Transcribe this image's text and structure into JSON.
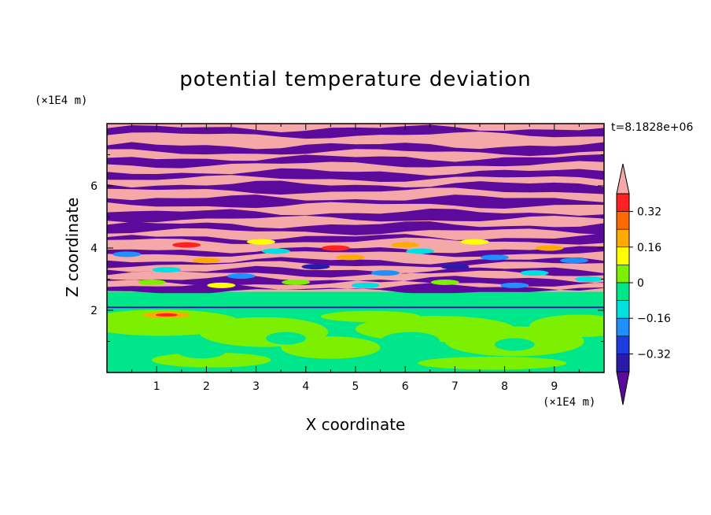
{
  "chart_data": {
    "type": "heatmap",
    "title": "potential temperature deviation",
    "xlabel": "X coordinate",
    "ylabel": "Z coordinate",
    "x_unit": "(×1E4 m)",
    "y_unit": "(×1E4 m)",
    "time_label": "t=8.1828e+06",
    "xlim": [
      0,
      10
    ],
    "ylim": [
      0,
      8
    ],
    "x_ticks": [
      1,
      2,
      3,
      4,
      5,
      6,
      7,
      8,
      9
    ],
    "y_ticks": [
      2,
      4,
      6
    ],
    "colorbar": {
      "labels": [
        "0.32",
        "0.16",
        "0",
        "-0.16",
        "-0.32"
      ],
      "levels": [
        -0.4,
        -0.32,
        -0.24,
        -0.16,
        -0.08,
        0,
        0.08,
        0.16,
        0.24,
        0.32,
        0.4
      ],
      "colors": [
        "#5b0a9c",
        "#2a1aa8",
        "#1e3de0",
        "#1e90ff",
        "#00e0e0",
        "#00e68a",
        "#7cf000",
        "#ffff00",
        "#ffaa00",
        "#ff6a00",
        "#ff2020",
        "#f5a8a8"
      ],
      "extend": "both"
    },
    "regions": [
      {
        "z_range": [
          0,
          2.0
        ],
        "description_colors": [
          "#7cf000",
          "#00e68a"
        ]
      },
      {
        "z_range": [
          2.0,
          2.6
        ],
        "description_colors": [
          "#00e68a"
        ]
      },
      {
        "z_range": [
          2.6,
          8.0
        ],
        "description_colors": [
          "#5b0a9c",
          "#f5a8a8"
        ]
      }
    ]
  }
}
